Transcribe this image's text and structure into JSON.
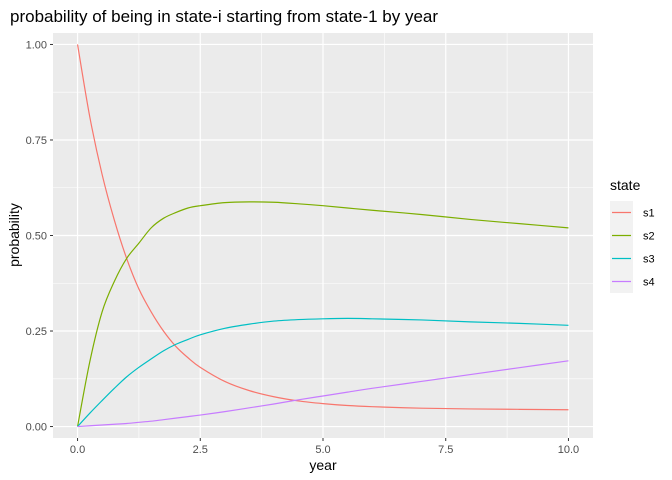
{
  "chart_data": {
    "type": "line",
    "title": "probability of being in state-i starting from state-1 by year",
    "xlabel": "year",
    "ylabel": "probability",
    "xlim": [
      -0.5,
      10.5
    ],
    "ylim": [
      -0.03,
      1.03
    ],
    "x_ticks": [
      0,
      2.5,
      5,
      7.5,
      10
    ],
    "x_tick_labels": [
      "0.0",
      "2.5",
      "5.0",
      "7.5",
      "10.0"
    ],
    "y_ticks": [
      0,
      0.25,
      0.5,
      0.75,
      1
    ],
    "y_tick_labels": [
      "0.00",
      "0.25",
      "0.50",
      "0.75",
      "1.00"
    ],
    "grid": true,
    "legend": {
      "title": "state",
      "position": "right"
    },
    "x": [
      0,
      0.25,
      0.5,
      0.75,
      1,
      1.25,
      1.5,
      1.75,
      2,
      2.25,
      2.5,
      3,
      3.5,
      4,
      4.5,
      5,
      5.5,
      6,
      7,
      8,
      9,
      10
    ],
    "series": [
      {
        "name": "s1",
        "color": "#F8766D",
        "values": [
          1.0,
          0.81,
          0.66,
          0.54,
          0.44,
          0.36,
          0.3,
          0.25,
          0.21,
          0.18,
          0.155,
          0.118,
          0.094,
          0.078,
          0.067,
          0.06,
          0.055,
          0.052,
          0.048,
          0.046,
          0.045,
          0.044
        ]
      },
      {
        "name": "s2",
        "color": "#7CAE00",
        "values": [
          0.0,
          0.17,
          0.3,
          0.38,
          0.44,
          0.48,
          0.52,
          0.545,
          0.56,
          0.572,
          0.578,
          0.586,
          0.588,
          0.587,
          0.583,
          0.578,
          0.572,
          0.566,
          0.555,
          0.542,
          0.531,
          0.52
        ]
      },
      {
        "name": "s3",
        "color": "#00BFC4",
        "values": [
          0.0,
          0.035,
          0.068,
          0.1,
          0.13,
          0.155,
          0.177,
          0.198,
          0.215,
          0.228,
          0.24,
          0.257,
          0.268,
          0.276,
          0.28,
          0.282,
          0.283,
          0.282,
          0.279,
          0.274,
          0.27,
          0.265
        ]
      },
      {
        "name": "s4",
        "color": "#C77CFF",
        "values": [
          0.0,
          0.002,
          0.004,
          0.006,
          0.008,
          0.011,
          0.014,
          0.018,
          0.022,
          0.026,
          0.03,
          0.039,
          0.049,
          0.059,
          0.07,
          0.08,
          0.09,
          0.1,
          0.118,
          0.136,
          0.154,
          0.172
        ]
      }
    ]
  }
}
